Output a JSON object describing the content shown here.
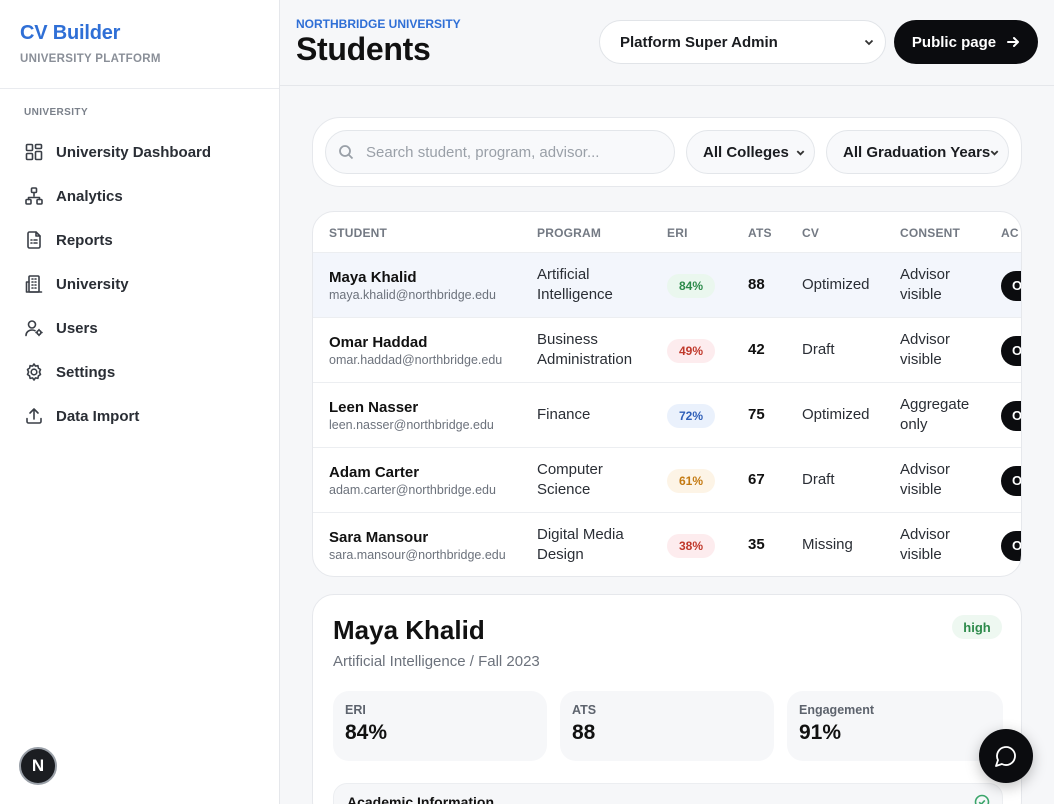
{
  "brand": {
    "title": "CV Builder",
    "subtitle": "UNIVERSITY PLATFORM"
  },
  "sidebar": {
    "section": "UNIVERSITY",
    "items": [
      {
        "label": "University Dashboard",
        "icon": "dashboard-grid-icon"
      },
      {
        "label": "Analytics",
        "icon": "analytics-network-icon"
      },
      {
        "label": "Reports",
        "icon": "reports-document-icon"
      },
      {
        "label": "University",
        "icon": "building-icon"
      },
      {
        "label": "Users",
        "icon": "users-gear-icon"
      },
      {
        "label": "Settings",
        "icon": "gear-icon"
      },
      {
        "label": "Data Import",
        "icon": "upload-icon"
      }
    ]
  },
  "avatar": {
    "letter": "N"
  },
  "header": {
    "university": "NORTHBRIDGE UNIVERSITY",
    "title": "Students",
    "role": "Platform Super Admin",
    "public_button": "Public page"
  },
  "filters": {
    "search_placeholder": "Search student, program, advisor...",
    "college": "All Colleges",
    "year": "All Graduation Years"
  },
  "table": {
    "columns": [
      "STUDENT",
      "PROGRAM",
      "ERI",
      "ATS",
      "CV",
      "CONSENT",
      "AC"
    ],
    "rows": [
      {
        "name": "Maya Khalid",
        "email": "maya.khalid@northbridge.edu",
        "program": "Artificial Intelligence",
        "eri": "84%",
        "ats": "88",
        "cv": "Optimized",
        "consent": "Advisor visible",
        "action": "O"
      },
      {
        "name": "Omar Haddad",
        "email": "omar.haddad@northbridge.edu",
        "program": "Business Administration",
        "eri": "49%",
        "ats": "42",
        "cv": "Draft",
        "consent": "Advisor visible",
        "action": "O"
      },
      {
        "name": "Leen Nasser",
        "email": "leen.nasser@northbridge.edu",
        "program": "Finance",
        "eri": "72%",
        "ats": "75",
        "cv": "Optimized",
        "consent": "Aggregate only",
        "action": "O"
      },
      {
        "name": "Adam Carter",
        "email": "adam.carter@northbridge.edu",
        "program": "Computer Science",
        "eri": "61%",
        "ats": "67",
        "cv": "Draft",
        "consent": "Advisor visible",
        "action": "O"
      },
      {
        "name": "Sara Mansour",
        "email": "sara.mansour@northbridge.edu",
        "program": "Digital Media Design",
        "eri": "38%",
        "ats": "35",
        "cv": "Missing",
        "consent": "Advisor visible",
        "action": "O"
      }
    ],
    "eri_colors": {
      "high": {
        "bg": "#eaf7ee",
        "fg": "#2c8a4a"
      },
      "low": {
        "bg": "#fdecee",
        "fg": "#c0392b"
      },
      "good": {
        "bg": "#eaf1fc",
        "fg": "#2f5fb8"
      },
      "mid": {
        "bg": "#fdf4e6",
        "fg": "#c47a12"
      }
    }
  },
  "detail": {
    "name": "Maya Khalid",
    "subtitle": "Artificial Intelligence / Fall 2023",
    "badge": "high",
    "metrics": [
      {
        "label": "ERI",
        "value": "84%"
      },
      {
        "label": "ATS",
        "value": "88"
      },
      {
        "label": "Engagement",
        "value": "91%"
      }
    ],
    "section_title": "Academic Information"
  }
}
